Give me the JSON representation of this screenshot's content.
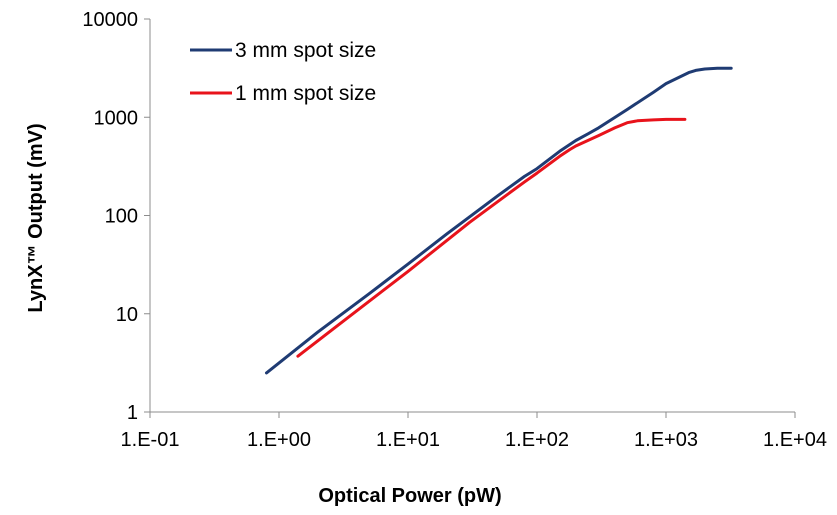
{
  "chart_data": {
    "type": "line",
    "title": "",
    "xlabel": "Optical Power (pW)",
    "ylabel": "LynX™ Output (mV)",
    "x_scale": "log",
    "y_scale": "log",
    "xlim": [
      0.1,
      10000
    ],
    "ylim": [
      1,
      10000
    ],
    "x_tick_labels": [
      "1.E-01",
      "1.E+00",
      "1.E+01",
      "1.E+02",
      "1.E+03",
      "1.E+04"
    ],
    "y_tick_labels": [
      "1",
      "10",
      "100",
      "1000",
      "10000"
    ],
    "x_ticks": [
      0.1,
      1,
      10,
      100,
      1000,
      10000
    ],
    "y_ticks": [
      1,
      10,
      100,
      1000,
      10000
    ],
    "grid": false,
    "legend_position": "top-left",
    "series": [
      {
        "name": "3 mm spot size",
        "color": "#1F3B73",
        "points": [
          [
            0.8,
            2.5
          ],
          [
            2,
            6.5
          ],
          [
            5,
            16
          ],
          [
            10,
            32
          ],
          [
            20,
            65
          ],
          [
            50,
            160
          ],
          [
            80,
            250
          ],
          [
            100,
            300
          ],
          [
            150,
            450
          ],
          [
            200,
            580
          ],
          [
            250,
            680
          ],
          [
            300,
            780
          ],
          [
            500,
            1200
          ],
          [
            800,
            1800
          ],
          [
            1000,
            2200
          ],
          [
            1500,
            2850
          ],
          [
            1700,
            3000
          ],
          [
            2000,
            3100
          ],
          [
            2500,
            3150
          ],
          [
            3200,
            3150
          ]
        ]
      },
      {
        "name": "1 mm spot size",
        "color": "#E8131B",
        "points": [
          [
            1.4,
            3.7
          ],
          [
            3,
            8
          ],
          [
            10,
            27
          ],
          [
            30,
            85
          ],
          [
            80,
            220
          ],
          [
            100,
            270
          ],
          [
            150,
            400
          ],
          [
            180,
            470
          ],
          [
            200,
            510
          ],
          [
            300,
            650
          ],
          [
            400,
            780
          ],
          [
            500,
            880
          ],
          [
            600,
            920
          ],
          [
            800,
            940
          ],
          [
            1000,
            950
          ],
          [
            1400,
            950
          ]
        ]
      }
    ]
  }
}
